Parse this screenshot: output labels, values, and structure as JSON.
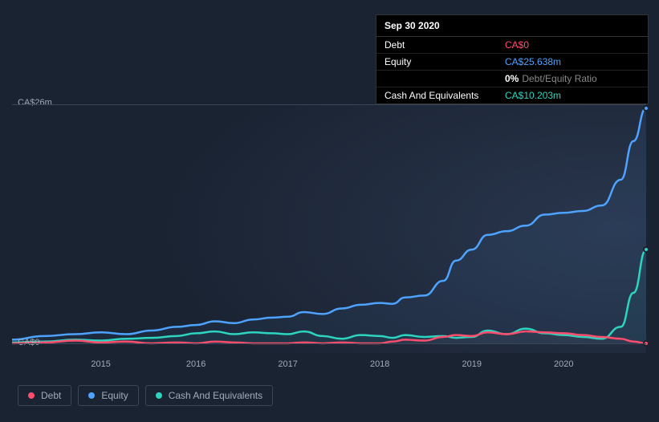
{
  "tooltip": {
    "date": "Sep 30 2020",
    "rows": [
      {
        "label": "Debt",
        "value": "CA$0",
        "cls": "debt"
      },
      {
        "label": "Equity",
        "value": "CA$25.638m",
        "cls": "equity"
      },
      {
        "label": "",
        "pct": "0%",
        "ratioLabel": "Debt/Equity Ratio"
      },
      {
        "label": "Cash And Equivalents",
        "value": "CA$10.203m",
        "cls": "cash"
      }
    ]
  },
  "chart": {
    "type": "line",
    "background": "#1a2332",
    "grid_color": "#3a4555",
    "y_top_label": "CA$26m",
    "y_bottom_label": "CA$0",
    "x_ticks": [
      {
        "label": "2015",
        "pos": 0.14
      },
      {
        "label": "2016",
        "pos": 0.29
      },
      {
        "label": "2017",
        "pos": 0.435
      },
      {
        "label": "2018",
        "pos": 0.58
      },
      {
        "label": "2019",
        "pos": 0.725
      },
      {
        "label": "2020",
        "pos": 0.87
      }
    ],
    "ylim": [
      0,
      26
    ],
    "line_width": 2.5,
    "series": [
      {
        "name": "Equity",
        "color": "#4da3ff",
        "fill": "rgba(77,163,255,0.06)",
        "values": [
          [
            0.0,
            0.4
          ],
          [
            0.05,
            0.8
          ],
          [
            0.1,
            1.0
          ],
          [
            0.14,
            1.2
          ],
          [
            0.18,
            1.0
          ],
          [
            0.22,
            1.4
          ],
          [
            0.26,
            1.8
          ],
          [
            0.29,
            2.0
          ],
          [
            0.32,
            2.4
          ],
          [
            0.35,
            2.2
          ],
          [
            0.38,
            2.6
          ],
          [
            0.41,
            2.8
          ],
          [
            0.435,
            2.9
          ],
          [
            0.46,
            3.4
          ],
          [
            0.49,
            3.2
          ],
          [
            0.52,
            3.8
          ],
          [
            0.55,
            4.2
          ],
          [
            0.58,
            4.4
          ],
          [
            0.6,
            4.3
          ],
          [
            0.62,
            5.0
          ],
          [
            0.65,
            5.2
          ],
          [
            0.68,
            6.8
          ],
          [
            0.7,
            9.0
          ],
          [
            0.725,
            10.2
          ],
          [
            0.75,
            11.8
          ],
          [
            0.78,
            12.2
          ],
          [
            0.81,
            12.8
          ],
          [
            0.84,
            14.0
          ],
          [
            0.87,
            14.2
          ],
          [
            0.9,
            14.4
          ],
          [
            0.93,
            15.0
          ],
          [
            0.96,
            17.8
          ],
          [
            0.98,
            22.0
          ],
          [
            1.0,
            25.6
          ]
        ]
      },
      {
        "name": "Cash And Equivalents",
        "color": "#2dd4bf",
        "fill": "rgba(45,212,191,0.05)",
        "values": [
          [
            0.0,
            0.1
          ],
          [
            0.05,
            0.2
          ],
          [
            0.1,
            0.4
          ],
          [
            0.14,
            0.3
          ],
          [
            0.18,
            0.5
          ],
          [
            0.22,
            0.6
          ],
          [
            0.26,
            0.8
          ],
          [
            0.29,
            1.1
          ],
          [
            0.32,
            1.3
          ],
          [
            0.35,
            1.0
          ],
          [
            0.38,
            1.2
          ],
          [
            0.41,
            1.1
          ],
          [
            0.435,
            1.0
          ],
          [
            0.46,
            1.3
          ],
          [
            0.49,
            0.8
          ],
          [
            0.52,
            0.5
          ],
          [
            0.55,
            0.9
          ],
          [
            0.58,
            0.8
          ],
          [
            0.6,
            0.6
          ],
          [
            0.62,
            0.9
          ],
          [
            0.65,
            0.7
          ],
          [
            0.68,
            0.8
          ],
          [
            0.7,
            0.6
          ],
          [
            0.725,
            0.7
          ],
          [
            0.75,
            1.4
          ],
          [
            0.78,
            1.0
          ],
          [
            0.81,
            1.6
          ],
          [
            0.84,
            1.1
          ],
          [
            0.87,
            0.9
          ],
          [
            0.9,
            0.7
          ],
          [
            0.93,
            0.5
          ],
          [
            0.96,
            1.8
          ],
          [
            0.98,
            5.5
          ],
          [
            1.0,
            10.2
          ]
        ]
      },
      {
        "name": "Debt",
        "color": "#ff4d6d",
        "fill": "rgba(255,77,109,0.04)",
        "values": [
          [
            0.0,
            0.0
          ],
          [
            0.05,
            0.1
          ],
          [
            0.1,
            0.3
          ],
          [
            0.14,
            0.1
          ],
          [
            0.18,
            0.2
          ],
          [
            0.22,
            0.0
          ],
          [
            0.26,
            0.1
          ],
          [
            0.29,
            0.0
          ],
          [
            0.32,
            0.2
          ],
          [
            0.35,
            0.1
          ],
          [
            0.38,
            0.0
          ],
          [
            0.41,
            0.0
          ],
          [
            0.435,
            0.0
          ],
          [
            0.46,
            0.1
          ],
          [
            0.49,
            0.0
          ],
          [
            0.52,
            0.1
          ],
          [
            0.55,
            0.0
          ],
          [
            0.58,
            0.0
          ],
          [
            0.6,
            0.2
          ],
          [
            0.62,
            0.4
          ],
          [
            0.65,
            0.3
          ],
          [
            0.68,
            0.7
          ],
          [
            0.7,
            0.9
          ],
          [
            0.725,
            0.8
          ],
          [
            0.75,
            1.2
          ],
          [
            0.78,
            1.0
          ],
          [
            0.81,
            1.3
          ],
          [
            0.84,
            1.2
          ],
          [
            0.87,
            1.1
          ],
          [
            0.9,
            0.9
          ],
          [
            0.93,
            0.7
          ],
          [
            0.96,
            0.5
          ],
          [
            0.98,
            0.2
          ],
          [
            1.0,
            0.0
          ]
        ]
      }
    ]
  },
  "legend": [
    {
      "name": "Debt",
      "color": "#ff4d6d"
    },
    {
      "name": "Equity",
      "color": "#4da3ff"
    },
    {
      "name": "Cash And Equivalents",
      "color": "#2dd4bf"
    }
  ]
}
